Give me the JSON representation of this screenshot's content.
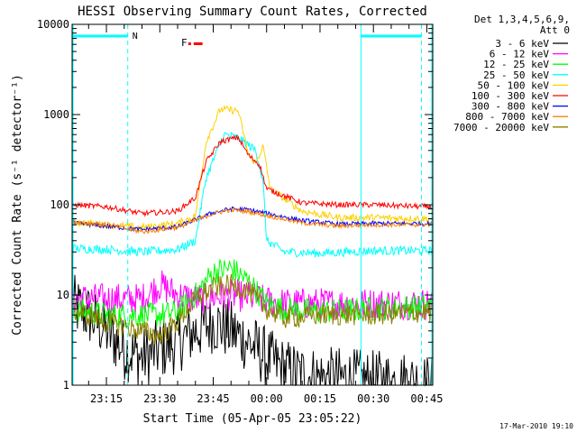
{
  "chart_data": {
    "type": "line",
    "title": "HESSI Observing Summary Count Rates, Corrected",
    "xlabel": "Start Time (05-Apr-05 23:05:22)",
    "ylabel": "Corrected Count Rate (s⁻¹ detector⁻¹)",
    "y_scale": "log",
    "ylim": [
      1,
      10000
    ],
    "y_ticks": [
      {
        "value": 1,
        "label": "1"
      },
      {
        "value": 10,
        "label": "10"
      },
      {
        "value": 100,
        "label": "100"
      },
      {
        "value": 1000,
        "label": "1000"
      },
      {
        "value": 10000,
        "label": "10000"
      }
    ],
    "xlim": [
      "23:05:22",
      "00:46:40"
    ],
    "x_ticks": [
      "23:15",
      "23:30",
      "23:45",
      "00:00",
      "00:15",
      "00:30",
      "00:45"
    ],
    "grid": false,
    "legend_position": "top-right",
    "legend_header": [
      "Det 1,3,4,5,6,9,",
      "Att 0"
    ],
    "series": [
      {
        "name": "3 - 6 keV",
        "color": "#000000",
        "points": [
          [
            "23:05",
            8
          ],
          [
            "23:10",
            6
          ],
          [
            "23:15",
            4
          ],
          [
            "23:20",
            2.5
          ],
          [
            "23:25",
            2
          ],
          [
            "23:30",
            2.5
          ],
          [
            "23:35",
            3
          ],
          [
            "23:40",
            4
          ],
          [
            "23:45",
            5
          ],
          [
            "23:50",
            4
          ],
          [
            "23:55",
            3
          ],
          [
            "00:00",
            2
          ],
          [
            "00:05",
            1.5
          ],
          [
            "00:10",
            1.3
          ],
          [
            "00:15",
            1.2
          ],
          [
            "00:20",
            1.2
          ],
          [
            "00:30",
            1.1
          ],
          [
            "00:40",
            1.1
          ],
          [
            "00:45",
            1
          ]
        ]
      },
      {
        "name": "6 - 12 keV",
        "color": "#ff00ff",
        "points": [
          [
            "23:05",
            9
          ],
          [
            "23:15",
            9
          ],
          [
            "23:25",
            9
          ],
          [
            "23:30",
            13
          ],
          [
            "23:35",
            10
          ],
          [
            "23:40",
            9
          ],
          [
            "23:45",
            9.5
          ],
          [
            "23:50",
            10
          ],
          [
            "23:55",
            9.5
          ],
          [
            "00:00",
            8.5
          ],
          [
            "00:05",
            8
          ],
          [
            "00:15",
            8
          ],
          [
            "00:30",
            8
          ],
          [
            "00:45",
            8
          ]
        ]
      },
      {
        "name": "12 - 25 keV",
        "color": "#00ff00",
        "points": [
          [
            "23:05",
            7
          ],
          [
            "23:15",
            6
          ],
          [
            "23:25",
            6
          ],
          [
            "23:30",
            6
          ],
          [
            "23:35",
            6.5
          ],
          [
            "23:40",
            10
          ],
          [
            "23:45",
            18
          ],
          [
            "23:50",
            20
          ],
          [
            "23:55",
            14
          ],
          [
            "00:00",
            8
          ],
          [
            "00:05",
            7
          ],
          [
            "00:15",
            6.5
          ],
          [
            "00:30",
            7
          ],
          [
            "00:45",
            7.5
          ]
        ]
      },
      {
        "name": "25 - 50 keV",
        "color": "#00ffff",
        "points": [
          [
            "23:05",
            33
          ],
          [
            "23:15",
            32
          ],
          [
            "23:25",
            30
          ],
          [
            "23:35",
            32
          ],
          [
            "23:40",
            40
          ],
          [
            "23:43",
            200
          ],
          [
            "23:48",
            600
          ],
          [
            "23:52",
            550
          ],
          [
            "23:57",
            400
          ],
          [
            "23:59",
            180
          ],
          [
            "00:00",
            40
          ],
          [
            "00:05",
            30
          ],
          [
            "00:15",
            29
          ],
          [
            "00:30",
            31
          ],
          [
            "00:45",
            31
          ]
        ]
      },
      {
        "name": "50 - 100 keV",
        "color": "#ffd000",
        "points": [
          [
            "23:05",
            65
          ],
          [
            "23:15",
            60
          ],
          [
            "23:25",
            56
          ],
          [
            "23:35",
            62
          ],
          [
            "23:40",
            75
          ],
          [
            "23:43",
            500
          ],
          [
            "23:47",
            1150
          ],
          [
            "23:52",
            1100
          ],
          [
            "23:55",
            350
          ],
          [
            "23:57",
            290
          ],
          [
            "23:59",
            450
          ],
          [
            "00:01",
            150
          ],
          [
            "00:10",
            85
          ],
          [
            "00:20",
            72
          ],
          [
            "00:30",
            72
          ],
          [
            "00:45",
            70
          ]
        ]
      },
      {
        "name": "100 - 300 keV",
        "color": "#ff0000",
        "points": [
          [
            "23:05",
            100
          ],
          [
            "23:15",
            95
          ],
          [
            "23:25",
            80
          ],
          [
            "23:35",
            85
          ],
          [
            "23:40",
            120
          ],
          [
            "23:43",
            300
          ],
          [
            "23:47",
            500
          ],
          [
            "23:52",
            560
          ],
          [
            "23:55",
            350
          ],
          [
            "23:58",
            280
          ],
          [
            "00:00",
            150
          ],
          [
            "00:10",
            105
          ],
          [
            "00:20",
            100
          ],
          [
            "00:30",
            100
          ],
          [
            "00:45",
            95
          ]
        ]
      },
      {
        "name": "300 - 800 keV",
        "color": "#0000ff",
        "points": [
          [
            "23:05",
            63
          ],
          [
            "23:15",
            58
          ],
          [
            "23:25",
            53
          ],
          [
            "23:35",
            57
          ],
          [
            "23:45",
            82
          ],
          [
            "23:50",
            90
          ],
          [
            "23:55",
            88
          ],
          [
            "00:00",
            80
          ],
          [
            "00:10",
            67
          ],
          [
            "00:20",
            61
          ],
          [
            "00:30",
            62
          ],
          [
            "00:45",
            62
          ]
        ]
      },
      {
        "name": "800 - 7000 keV",
        "color": "#ff8000",
        "points": [
          [
            "23:05",
            65
          ],
          [
            "23:15",
            60
          ],
          [
            "23:25",
            50
          ],
          [
            "23:35",
            56
          ],
          [
            "23:45",
            80
          ],
          [
            "23:50",
            88
          ],
          [
            "23:55",
            84
          ],
          [
            "00:00",
            76
          ],
          [
            "00:10",
            63
          ],
          [
            "00:20",
            58
          ],
          [
            "00:30",
            60
          ],
          [
            "00:45",
            60
          ]
        ]
      },
      {
        "name": "7000 - 20000 keV",
        "color": "#8b8000",
        "points": [
          [
            "23:05",
            7
          ],
          [
            "23:15",
            5
          ],
          [
            "23:25",
            4
          ],
          [
            "23:30",
            3.5
          ],
          [
            "23:35",
            5
          ],
          [
            "23:40",
            9
          ],
          [
            "23:45",
            12
          ],
          [
            "23:50",
            13
          ],
          [
            "23:55",
            11
          ],
          [
            "00:00",
            7
          ],
          [
            "00:05",
            5.5
          ],
          [
            "00:15",
            6
          ],
          [
            "00:30",
            6
          ],
          [
            "00:45",
            6.5
          ]
        ]
      }
    ],
    "annotations": [
      {
        "text": "N",
        "color": "#00ffff"
      },
      {
        "text": "F",
        "color": "#ff0000"
      }
    ],
    "footer": "17-Mar-2010 19:10"
  }
}
